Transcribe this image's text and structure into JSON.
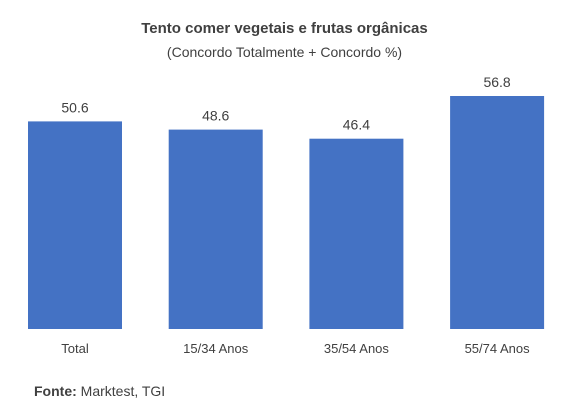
{
  "chart_data": {
    "type": "bar",
    "title": "Tento comer vegetais e frutas orgânicas",
    "subtitle": "(Concordo Totalmente + Concordo %)",
    "categories": [
      "Total",
      "15/34 Anos",
      "35/54 Anos",
      "55/74 Anos"
    ],
    "values": [
      50.6,
      48.6,
      46.4,
      56.8
    ],
    "value_labels": [
      "50.6",
      "48.6",
      "46.4",
      "56.8"
    ],
    "bar_color": "#4472C4",
    "ylim": [
      0,
      60
    ],
    "grid": false,
    "legend": "none"
  },
  "source": {
    "label": "Fonte:",
    "text": "Marktest, TGI"
  }
}
